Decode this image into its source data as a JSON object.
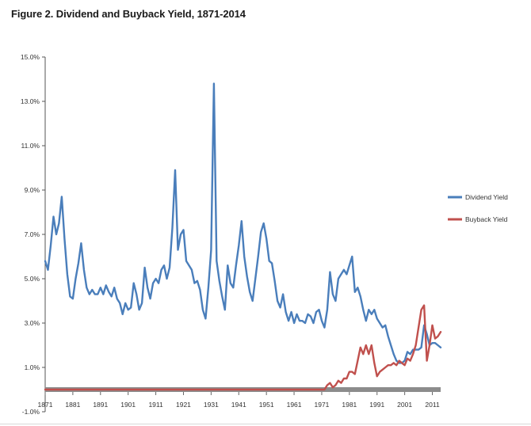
{
  "figure_title": "Figure 2. Dividend and Buyback Yield, 1871-2014",
  "chart_data": {
    "type": "line",
    "title": "Figure 2. Dividend and Buyback Yield, 1871-2014",
    "xlim": [
      1871,
      2014
    ],
    "ylim": [
      -1.0,
      15.0
    ],
    "x_ticks": [
      1871,
      1881,
      1891,
      1901,
      1911,
      1921,
      1931,
      1941,
      1951,
      1961,
      1971,
      1981,
      1991,
      2001,
      2011
    ],
    "x_tick_labels": [
      "1871",
      "1881",
      "1891",
      "1901",
      "1911",
      "1921",
      "1931",
      "1941",
      "1951",
      "1961",
      "1971",
      "1981",
      "1991",
      "2001",
      "2011"
    ],
    "y_ticks": [
      15.0,
      13.0,
      11.0,
      9.0,
      7.0,
      5.0,
      3.0,
      1.0,
      -1.0
    ],
    "y_tick_labels": [
      "15.0%",
      "13.0%",
      "11.0%",
      "9.0%",
      "7.0%",
      "5.0%",
      "3.0%",
      "1.0%",
      "-1.0%"
    ],
    "zero_line": {
      "y": 0,
      "color": "#8c8c8c"
    },
    "legend_position": "right",
    "series": [
      {
        "name": "Dividend Yield",
        "color": "#4a7ebb",
        "points": [
          [
            1871,
            5.8
          ],
          [
            1872,
            5.4
          ],
          [
            1873,
            6.5
          ],
          [
            1874,
            7.8
          ],
          [
            1875,
            7.0
          ],
          [
            1876,
            7.5
          ],
          [
            1877,
            8.7
          ],
          [
            1878,
            6.8
          ],
          [
            1879,
            5.2
          ],
          [
            1880,
            4.2
          ],
          [
            1881,
            4.1
          ],
          [
            1882,
            5.0
          ],
          [
            1883,
            5.7
          ],
          [
            1884,
            6.6
          ],
          [
            1885,
            5.4
          ],
          [
            1886,
            4.6
          ],
          [
            1887,
            4.3
          ],
          [
            1888,
            4.5
          ],
          [
            1889,
            4.3
          ],
          [
            1890,
            4.3
          ],
          [
            1891,
            4.6
          ],
          [
            1892,
            4.3
          ],
          [
            1893,
            4.7
          ],
          [
            1894,
            4.4
          ],
          [
            1895,
            4.2
          ],
          [
            1896,
            4.6
          ],
          [
            1897,
            4.1
          ],
          [
            1898,
            3.9
          ],
          [
            1899,
            3.4
          ],
          [
            1900,
            3.9
          ],
          [
            1901,
            3.6
          ],
          [
            1902,
            3.7
          ],
          [
            1903,
            4.8
          ],
          [
            1904,
            4.3
          ],
          [
            1905,
            3.6
          ],
          [
            1906,
            3.9
          ],
          [
            1907,
            5.5
          ],
          [
            1908,
            4.6
          ],
          [
            1909,
            4.1
          ],
          [
            1910,
            4.8
          ],
          [
            1911,
            5.0
          ],
          [
            1912,
            4.8
          ],
          [
            1913,
            5.4
          ],
          [
            1914,
            5.6
          ],
          [
            1915,
            5.0
          ],
          [
            1916,
            5.5
          ],
          [
            1917,
            7.3
          ],
          [
            1918,
            9.9
          ],
          [
            1919,
            6.3
          ],
          [
            1920,
            7.0
          ],
          [
            1921,
            7.2
          ],
          [
            1922,
            5.8
          ],
          [
            1923,
            5.6
          ],
          [
            1924,
            5.4
          ],
          [
            1925,
            4.8
          ],
          [
            1926,
            4.9
          ],
          [
            1927,
            4.5
          ],
          [
            1928,
            3.6
          ],
          [
            1929,
            3.2
          ],
          [
            1930,
            4.6
          ],
          [
            1931,
            6.3
          ],
          [
            1932,
            13.8
          ],
          [
            1933,
            5.8
          ],
          [
            1934,
            4.9
          ],
          [
            1935,
            4.2
          ],
          [
            1936,
            3.6
          ],
          [
            1937,
            5.6
          ],
          [
            1938,
            4.8
          ],
          [
            1939,
            4.6
          ],
          [
            1940,
            5.6
          ],
          [
            1941,
            6.5
          ],
          [
            1942,
            7.6
          ],
          [
            1943,
            6.0
          ],
          [
            1944,
            5.1
          ],
          [
            1945,
            4.4
          ],
          [
            1946,
            4.0
          ],
          [
            1947,
            5.0
          ],
          [
            1948,
            6.0
          ],
          [
            1949,
            7.1
          ],
          [
            1950,
            7.5
          ],
          [
            1951,
            6.8
          ],
          [
            1952,
            5.8
          ],
          [
            1953,
            5.7
          ],
          [
            1954,
            4.9
          ],
          [
            1955,
            4.0
          ],
          [
            1956,
            3.7
          ],
          [
            1957,
            4.3
          ],
          [
            1958,
            3.5
          ],
          [
            1959,
            3.1
          ],
          [
            1960,
            3.5
          ],
          [
            1961,
            3.0
          ],
          [
            1962,
            3.4
          ],
          [
            1963,
            3.1
          ],
          [
            1964,
            3.1
          ],
          [
            1965,
            3.0
          ],
          [
            1966,
            3.4
          ],
          [
            1967,
            3.3
          ],
          [
            1968,
            3.0
          ],
          [
            1969,
            3.5
          ],
          [
            1970,
            3.6
          ],
          [
            1971,
            3.1
          ],
          [
            1972,
            2.8
          ],
          [
            1973,
            3.6
          ],
          [
            1974,
            5.3
          ],
          [
            1975,
            4.3
          ],
          [
            1976,
            4.0
          ],
          [
            1977,
            5.0
          ],
          [
            1978,
            5.2
          ],
          [
            1979,
            5.4
          ],
          [
            1980,
            5.2
          ],
          [
            1981,
            5.6
          ],
          [
            1982,
            6.0
          ],
          [
            1983,
            4.4
          ],
          [
            1984,
            4.6
          ],
          [
            1985,
            4.2
          ],
          [
            1986,
            3.6
          ],
          [
            1987,
            3.1
          ],
          [
            1988,
            3.6
          ],
          [
            1989,
            3.4
          ],
          [
            1990,
            3.6
          ],
          [
            1991,
            3.2
          ],
          [
            1992,
            3.0
          ],
          [
            1993,
            2.8
          ],
          [
            1994,
            2.9
          ],
          [
            1995,
            2.4
          ],
          [
            1996,
            2.0
          ],
          [
            1997,
            1.6
          ],
          [
            1998,
            1.3
          ],
          [
            1999,
            1.2
          ],
          [
            2000,
            1.2
          ],
          [
            2001,
            1.3
          ],
          [
            2002,
            1.7
          ],
          [
            2003,
            1.6
          ],
          [
            2004,
            1.8
          ],
          [
            2005,
            1.8
          ],
          [
            2006,
            1.8
          ],
          [
            2007,
            1.9
          ],
          [
            2008,
            2.9
          ],
          [
            2009,
            2.5
          ],
          [
            2010,
            2.0
          ],
          [
            2011,
            2.1
          ],
          [
            2012,
            2.1
          ],
          [
            2013,
            2.0
          ],
          [
            2014,
            1.9
          ]
        ]
      },
      {
        "name": "Buyback Yield",
        "color": "#c0504d",
        "points": [
          [
            1871,
            0.0
          ],
          [
            1972,
            0.0
          ],
          [
            1973,
            0.2
          ],
          [
            1974,
            0.3
          ],
          [
            1975,
            0.1
          ],
          [
            1976,
            0.2
          ],
          [
            1977,
            0.4
          ],
          [
            1978,
            0.3
          ],
          [
            1979,
            0.5
          ],
          [
            1980,
            0.5
          ],
          [
            1981,
            0.8
          ],
          [
            1982,
            0.8
          ],
          [
            1983,
            0.7
          ],
          [
            1984,
            1.3
          ],
          [
            1985,
            1.9
          ],
          [
            1986,
            1.6
          ],
          [
            1987,
            2.0
          ],
          [
            1988,
            1.6
          ],
          [
            1989,
            2.0
          ],
          [
            1990,
            1.2
          ],
          [
            1991,
            0.6
          ],
          [
            1992,
            0.8
          ],
          [
            1993,
            0.9
          ],
          [
            1994,
            1.0
          ],
          [
            1995,
            1.1
          ],
          [
            1996,
            1.1
          ],
          [
            1997,
            1.2
          ],
          [
            1998,
            1.1
          ],
          [
            1999,
            1.3
          ],
          [
            2000,
            1.2
          ],
          [
            2001,
            1.1
          ],
          [
            2002,
            1.4
          ],
          [
            2003,
            1.3
          ],
          [
            2004,
            1.6
          ],
          [
            2005,
            2.0
          ],
          [
            2006,
            2.8
          ],
          [
            2007,
            3.6
          ],
          [
            2008,
            3.8
          ],
          [
            2009,
            1.3
          ],
          [
            2010,
            2.0
          ],
          [
            2011,
            2.9
          ],
          [
            2012,
            2.3
          ],
          [
            2013,
            2.4
          ],
          [
            2014,
            2.6
          ]
        ]
      }
    ]
  }
}
